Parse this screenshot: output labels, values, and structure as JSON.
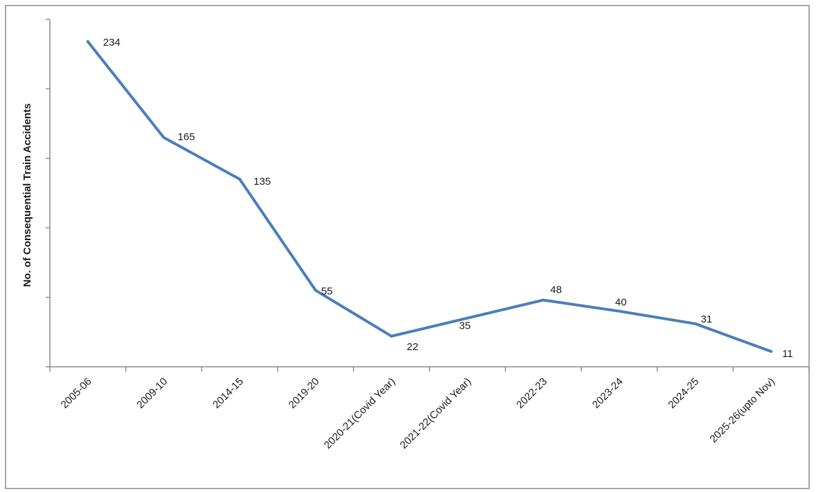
{
  "chart_data": {
    "type": "line",
    "ylabel": "No. of Consequential Train Accidents",
    "xlabel": "",
    "categories": [
      "2005-06",
      "2009-10",
      "2014-15",
      "2019-20",
      "2020-21(Covid Year)",
      "2021-22(Covid Year)",
      "2022-23",
      "2023-24",
      "2024-25",
      "2025-26(upto Nov)"
    ],
    "series": [
      {
        "values": [
          234,
          165,
          135,
          55,
          22,
          35,
          48,
          40,
          31,
          11
        ],
        "color": "#4a7ebb"
      }
    ],
    "ylim": [
      0,
      250
    ],
    "y_tick_step": 50,
    "y_tick_labels_shown": false,
    "grid": false,
    "legend": "none",
    "data_labels": true
  }
}
